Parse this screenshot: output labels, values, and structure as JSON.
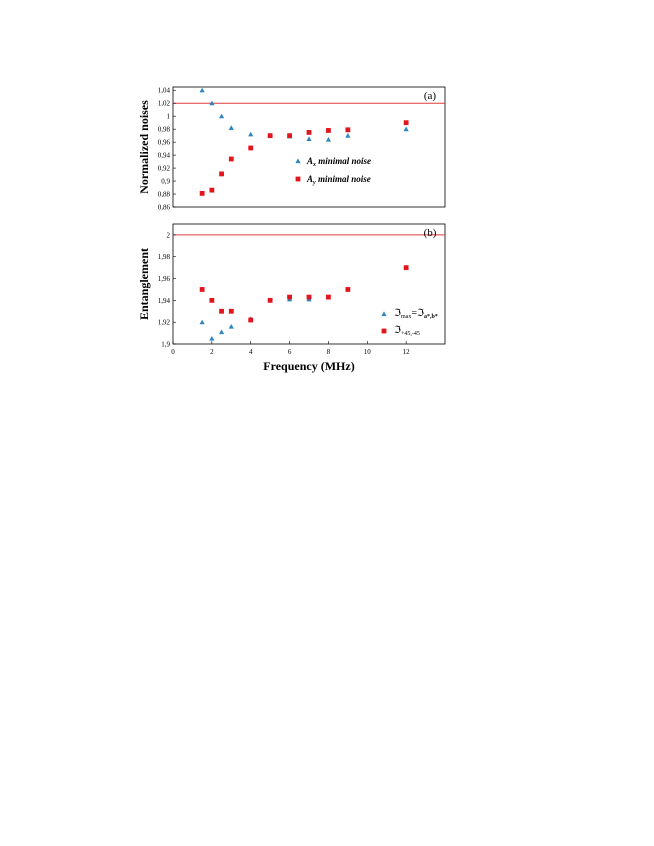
{
  "chart_data": [
    {
      "type": "scatter",
      "panel_label": "(a)",
      "ylabel": "Normalized noises",
      "ylim": [
        0.86,
        1.045
      ],
      "xlim": [
        0,
        14
      ],
      "yticks": [
        "0,86",
        "0,88",
        "0,9",
        "0,92",
        "0,94",
        "0,96",
        "0,98",
        "1",
        "1,02",
        "1,04"
      ],
      "ytick_values": [
        0.86,
        0.88,
        0.9,
        0.92,
        0.94,
        0.96,
        0.98,
        1.0,
        1.02,
        1.04
      ],
      "reference_line": 1.02,
      "reference_color": "#e23b3b",
      "legend_position": "center-right",
      "series": [
        {
          "name_main": "A",
          "name_sub": "x",
          "name_rest": " minimal noise",
          "marker": "triangle",
          "color": "#2e86c1",
          "x": [
            1.5,
            2,
            2.5,
            3,
            4,
            5,
            6,
            7,
            8,
            9,
            12
          ],
          "y": [
            1.04,
            1.02,
            1.0,
            0.982,
            0.972,
            0.97,
            0.969,
            0.965,
            0.964,
            0.97,
            0.98
          ]
        },
        {
          "name_main": "A",
          "name_sub": "y",
          "name_rest": " minimal noise",
          "marker": "square",
          "color": "#e3151c",
          "x": [
            1.5,
            2,
            2.5,
            3,
            4,
            5,
            6,
            7,
            8,
            9,
            12
          ],
          "y": [
            0.881,
            0.886,
            0.911,
            0.934,
            0.951,
            0.97,
            0.97,
            0.975,
            0.978,
            0.979,
            0.99
          ]
        }
      ]
    },
    {
      "type": "scatter",
      "panel_label": "(b)",
      "ylabel": "Entanglement",
      "xlabel": "Frequency (MHz)",
      "ylim": [
        1.9,
        2.01
      ],
      "xlim": [
        0,
        14
      ],
      "xticks": [
        "0",
        "2",
        "4",
        "6",
        "8",
        "10",
        "12"
      ],
      "xtick_values": [
        0,
        2,
        4,
        6,
        8,
        10,
        12
      ],
      "yticks": [
        "1,9",
        "1,92",
        "1,94",
        "1,96",
        "1,98",
        "2"
      ],
      "ytick_values": [
        1.9,
        1.92,
        1.94,
        1.96,
        1.98,
        2.0
      ],
      "reference_line": 2.0,
      "reference_color": "#e23b3b",
      "legend_position": "bottom-right",
      "series": [
        {
          "name_main": "ℑ",
          "name_sub": "max",
          "name_eq": "=ℑ",
          "name_sub2": "a*,b*",
          "marker": "triangle",
          "color": "#2e86c1",
          "x": [
            1.5,
            2,
            2.5,
            3,
            4,
            6,
            7
          ],
          "y": [
            1.92,
            1.905,
            1.911,
            1.916,
            1.923,
            1.941,
            1.941
          ]
        },
        {
          "name_main": "ℑ",
          "name_sub": "+45,-45",
          "marker": "square",
          "color": "#e3151c",
          "x": [
            1.5,
            2,
            2.5,
            3,
            4,
            5,
            6,
            7,
            8,
            9,
            12
          ],
          "y": [
            1.95,
            1.94,
            1.93,
            1.93,
            1.922,
            1.94,
            1.943,
            1.943,
            1.943,
            1.95,
            1.97
          ]
        }
      ]
    }
  ]
}
